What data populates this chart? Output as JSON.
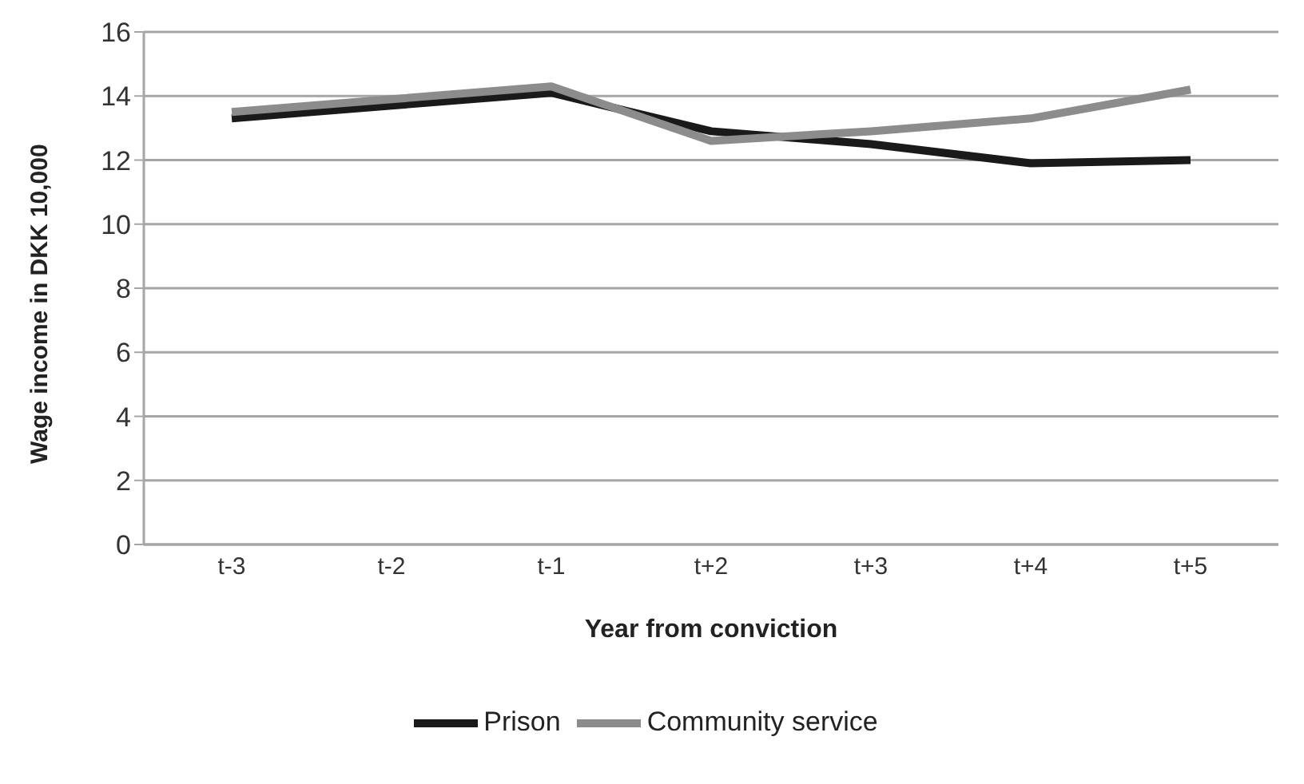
{
  "chart_data": {
    "type": "line",
    "xlabel": "Year from conviction",
    "ylabel": "Wage income in DKK 10,000",
    "categories": [
      "t-3",
      "t-2",
      "t-1",
      "t+2",
      "t+3",
      "t+4",
      "t+5"
    ],
    "series": [
      {
        "name": "Prison",
        "color": "#1a1a1a",
        "values": [
          13.3,
          13.7,
          14.1,
          12.9,
          12.5,
          11.9,
          12.0
        ]
      },
      {
        "name": "Community service",
        "color": "#8c8c8c",
        "values": [
          13.5,
          13.9,
          14.3,
          12.6,
          12.9,
          13.3,
          14.2
        ]
      }
    ],
    "ylim": [
      0,
      16
    ],
    "yticks": [
      0,
      2,
      4,
      6,
      8,
      10,
      12,
      14,
      16
    ],
    "grid": "y",
    "legend": "bottom",
    "marker": "none",
    "line_style": "solid"
  }
}
